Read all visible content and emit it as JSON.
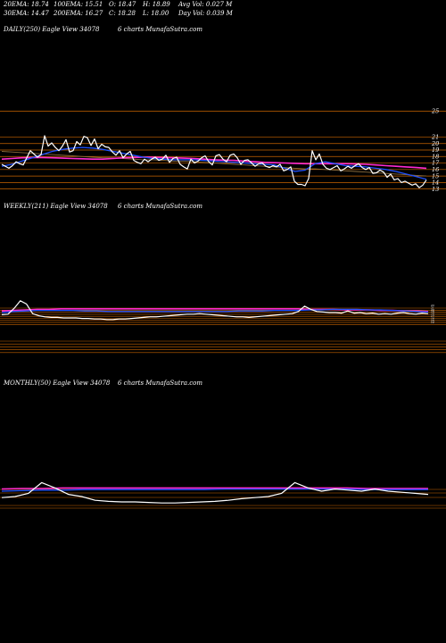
{
  "header": {
    "ema20": "20EMA: 18.74",
    "ema100": "100EMA: 15.51",
    "open": "O: 18.47",
    "high": "H: 18.89",
    "avg_vol": "Avg Vol: 0.027 M",
    "ema30": "30EMA: 14.47",
    "ema200": "200EMA: 16.27",
    "close": "C: 18.28",
    "low": "L: 18.00",
    "day_vol": "Day Vol: 0.039 M"
  },
  "panels": {
    "daily": {
      "label": "DAILY(250) Eagle  View  34078",
      "site": "6  charts MunafaSutra.com"
    },
    "weekly": {
      "label": "WEEKLY(211) Eagle  View  34078",
      "site": "6  charts MunafaSutra.com"
    },
    "monthly": {
      "label": "MONTHLY(50) Eagle  View  34078",
      "site": "6  charts MunafaSutra.com"
    }
  },
  "colors": {
    "background": "#000000",
    "price": "#ffffff",
    "ema_short": "#1e50ff",
    "ema_long": "#ff2ad0",
    "guide": "#c86400",
    "ema_mid": "#8a6a3a"
  },
  "chart_data": [
    {
      "type": "line",
      "panel": "daily",
      "y_ticks": [
        "25",
        "21",
        "20",
        "19",
        "18",
        "17",
        "16",
        "15",
        "14",
        "13"
      ],
      "ylim": [
        12.4,
        25.6
      ],
      "guide_levels": [
        25,
        21,
        20,
        19,
        18,
        17,
        16,
        15,
        14,
        13
      ],
      "series": [
        {
          "role": "price",
          "values": [
            16.8,
            16.5,
            16.2,
            16.6,
            17.2,
            16.9,
            16.7,
            17.8,
            18.9,
            18.4,
            17.9,
            18.3,
            21.2,
            19.6,
            20.1,
            19.4,
            18.9,
            19.6,
            20.6,
            18.7,
            18.9,
            20.3,
            19.8,
            21.1,
            20.9,
            19.7,
            20.7,
            19.2,
            19.9,
            19.5,
            19.4,
            18.7,
            18.2,
            18.9,
            17.8,
            18.4,
            18.8,
            17.4,
            17.1,
            16.9,
            17.6,
            17.2,
            17.6,
            17.9,
            17.4,
            17.6,
            18.2,
            17.1,
            17.7,
            17.9,
            16.8,
            16.4,
            16.1,
            17.6,
            17.0,
            17.3,
            17.8,
            18.1,
            17.2,
            16.7,
            18.1,
            18.3,
            17.6,
            17.2,
            18.2,
            18.4,
            17.8,
            16.8,
            17.4,
            17.5,
            17.0,
            16.5,
            16.9,
            17.0,
            16.5,
            16.3,
            16.6,
            16.4,
            16.8,
            15.8,
            16.0,
            16.4,
            14.2,
            13.7,
            13.7,
            13.5,
            14.6,
            18.9,
            17.5,
            18.4,
            16.8,
            16.2,
            16.0,
            16.3,
            16.6,
            15.8,
            16.1,
            16.5,
            16.2,
            16.6,
            16.9,
            16.3,
            16.0,
            16.3,
            15.4,
            15.5,
            15.9,
            15.6,
            14.8,
            15.3,
            14.4,
            14.6,
            14.0,
            14.2,
            13.9,
            13.6,
            13.8,
            13.2,
            13.6,
            14.4
          ]
        },
        {
          "role": "ema_short",
          "values": [
            16.5,
            16.8,
            17.3,
            17.8,
            18.3,
            18.8,
            19.1,
            19.3,
            19.4,
            19.3,
            19.1,
            18.8,
            18.5,
            18.2,
            17.9,
            17.7,
            17.6,
            17.5,
            17.5,
            17.5,
            17.4,
            17.3,
            17.2,
            17.1,
            17.0,
            16.9,
            16.8,
            16.7,
            16.2,
            15.7,
            15.9,
            16.9,
            17.2,
            16.9,
            16.6,
            16.5,
            16.4,
            16.2,
            16.0,
            15.7,
            15.3,
            14.9,
            14.5
          ]
        },
        {
          "role": "ema_long",
          "values": [
            17.6,
            17.7,
            17.8,
            17.85,
            17.85,
            17.8,
            17.75,
            17.7,
            17.65,
            17.6,
            17.6,
            17.7,
            17.8,
            17.85,
            17.9,
            17.9,
            17.85,
            17.8,
            17.75,
            17.7,
            17.6,
            17.5,
            17.45,
            17.4,
            17.3,
            17.2,
            17.1,
            17.05,
            17.0,
            16.95,
            16.9,
            16.9,
            16.9,
            16.9,
            16.9,
            16.85,
            16.8,
            16.7,
            16.6,
            16.5,
            16.4,
            16.3,
            16.2
          ]
        },
        {
          "role": "ema_mid",
          "values": [
            18.8,
            18.7,
            18.6,
            18.5,
            18.4,
            18.3,
            18.2,
            18.1,
            18.0,
            17.9,
            17.8,
            17.8,
            17.7,
            17.6,
            17.5,
            17.5,
            17.4,
            17.3,
            17.3,
            17.2,
            17.1,
            17.0,
            16.9,
            16.8,
            16.7,
            16.6,
            16.5,
            16.4,
            16.3,
            16.2,
            16.1,
            16.1,
            16.0,
            15.9,
            15.8,
            15.7,
            15.6,
            15.5,
            15.4,
            15.3,
            15.2,
            15.1,
            15.0
          ]
        }
      ]
    },
    {
      "type": "line",
      "panel": "weekly",
      "y_ticks": [
        "23",
        "21",
        "20",
        "19",
        "18",
        "17",
        "16",
        "15",
        "14"
      ],
      "ylim": [
        0,
        100
      ],
      "guide_levels": [
        23,
        21,
        20,
        19,
        18,
        17,
        16,
        15,
        14
      ],
      "series": [
        {
          "role": "price",
          "values": [
            46,
            47,
            58,
            72,
            66,
            48,
            44,
            42,
            41,
            41,
            40,
            40,
            40,
            39,
            39,
            38,
            38,
            37,
            37,
            38,
            38,
            39,
            40,
            41,
            42,
            42,
            43,
            44,
            45,
            46,
            47,
            47,
            48,
            47,
            46,
            45,
            44,
            43,
            42,
            42,
            41,
            42,
            43,
            44,
            45,
            46,
            47,
            48,
            52,
            62,
            56,
            52,
            51,
            50,
            50,
            49,
            53,
            49,
            50,
            48,
            49,
            47,
            48,
            47,
            49,
            50,
            48,
            47,
            49,
            48
          ]
        },
        {
          "role": "ema_short",
          "values": [
            50,
            52,
            53,
            54,
            54,
            54,
            54,
            53,
            53,
            52,
            52,
            52,
            52,
            52,
            52,
            52,
            52,
            52,
            52,
            52,
            53,
            53,
            53,
            54,
            54,
            54,
            55,
            55,
            56,
            56,
            56,
            55,
            55,
            54,
            53,
            52,
            51
          ]
        },
        {
          "role": "ema_long",
          "values": [
            53,
            54,
            55,
            56,
            56,
            57,
            57,
            57,
            57,
            57,
            57,
            57,
            57,
            57,
            57,
            57,
            57,
            57,
            57,
            57,
            57,
            57,
            57,
            57,
            57,
            57,
            56,
            56,
            56,
            55,
            55,
            55,
            54,
            54,
            53,
            53,
            52
          ]
        }
      ]
    },
    {
      "type": "line",
      "panel": "monthly",
      "y_ticks": [],
      "ylim": [
        0,
        100
      ],
      "guide_levels": [],
      "series": [
        {
          "role": "price",
          "values": [
            38,
            40,
            46,
            66,
            56,
            44,
            40,
            33,
            31,
            30,
            30,
            29,
            28,
            28,
            29,
            30,
            31,
            33,
            36,
            38,
            40,
            46,
            66,
            56,
            50,
            54,
            52,
            50,
            54,
            50,
            48,
            46,
            44
          ]
        },
        {
          "role": "ema_short",
          "values": [
            50,
            51,
            52,
            52,
            53,
            53,
            53,
            53,
            53,
            53,
            53,
            54,
            54,
            54,
            54,
            54,
            54,
            54,
            53,
            53,
            53,
            53
          ]
        },
        {
          "role": "ema_long",
          "values": [
            54,
            55,
            55,
            56,
            56,
            56,
            56,
            56,
            56,
            56,
            56,
            56,
            56,
            56,
            56,
            56,
            56,
            56,
            55,
            55,
            55,
            55
          ]
        }
      ]
    }
  ]
}
